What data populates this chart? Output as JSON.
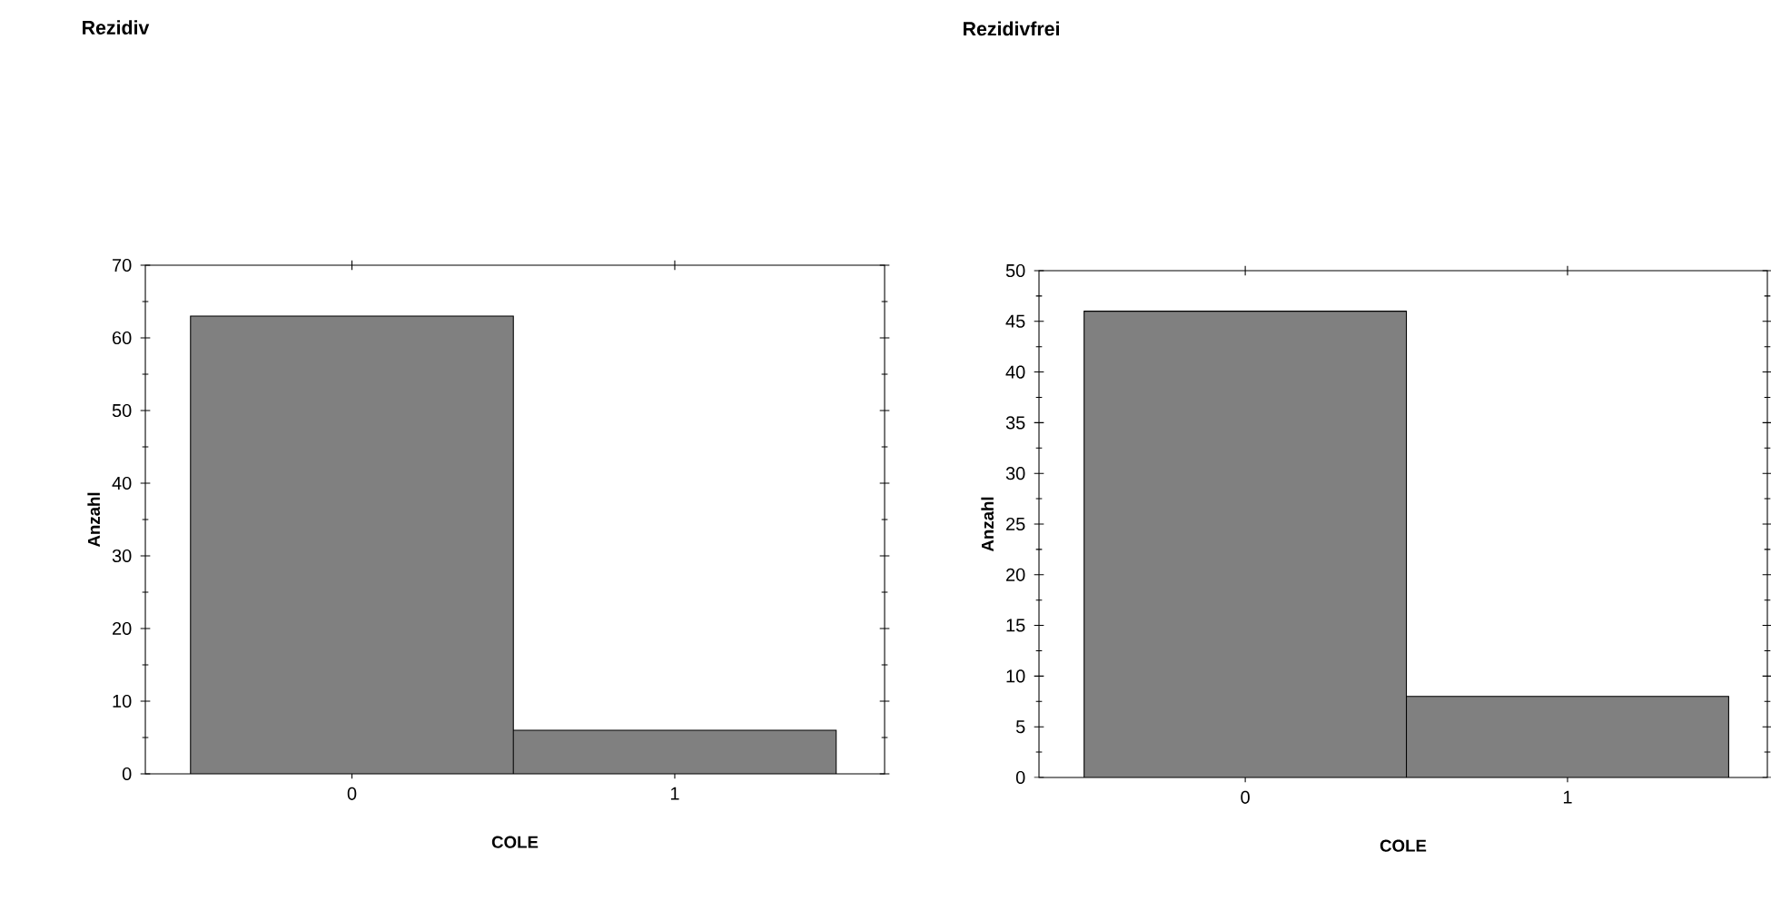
{
  "chart_data": [
    {
      "type": "bar",
      "title": "Rezidiv",
      "xlabel": "COLE",
      "ylabel": "Anzahl",
      "categories": [
        "0",
        "1"
      ],
      "values": [
        63,
        6
      ],
      "color": "#808080",
      "ylim": [
        0,
        70
      ],
      "yticks": [
        0,
        10,
        20,
        30,
        40,
        50,
        60,
        70
      ]
    },
    {
      "type": "bar",
      "title": "Rezidivfrei",
      "xlabel": "COLE",
      "ylabel": "Anzahl",
      "categories": [
        "0",
        "1"
      ],
      "values": [
        46,
        8
      ],
      "color": "#808080",
      "ylim": [
        0,
        50
      ],
      "yticks": [
        0,
        5,
        10,
        15,
        20,
        25,
        30,
        35,
        40,
        45,
        50
      ]
    }
  ]
}
